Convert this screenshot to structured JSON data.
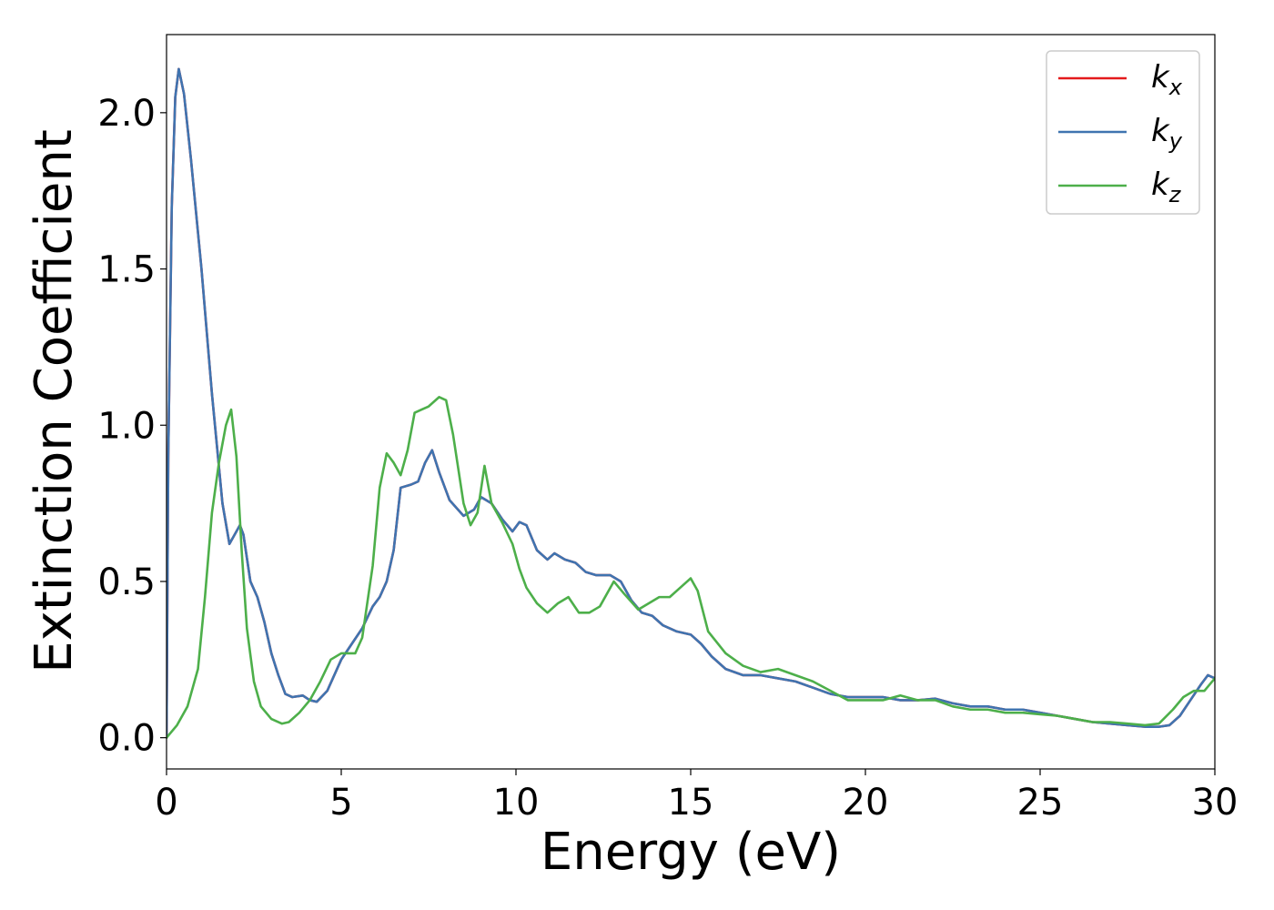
{
  "chart_data": {
    "type": "line",
    "title": "",
    "xlabel": "Energy (eV)",
    "ylabel": "Extinction Coefficient",
    "xlim": [
      0,
      30
    ],
    "ylim": [
      -0.1,
      2.25
    ],
    "xticks": [
      0,
      5,
      10,
      15,
      20,
      25,
      30
    ],
    "xtick_labels": [
      "0",
      "5",
      "10",
      "15",
      "20",
      "25",
      "30"
    ],
    "yticks": [
      0.0,
      0.5,
      1.0,
      1.5,
      2.0
    ],
    "ytick_labels": [
      "0.0",
      "0.5",
      "1.0",
      "1.5",
      "2.0"
    ],
    "grid": false,
    "legend_position": "top-right",
    "series": [
      {
        "name": "k",
        "sub": "x",
        "color": "#e41a1c",
        "x": [
          0,
          0.05,
          0.15,
          0.25,
          0.35,
          0.5,
          0.7,
          1.0,
          1.3,
          1.6,
          1.8,
          2.0,
          2.1,
          2.2,
          2.4,
          2.6,
          2.8,
          3.0,
          3.2,
          3.4,
          3.6,
          3.9,
          4.1,
          4.3,
          4.6,
          5.0,
          5.3,
          5.6,
          5.9,
          6.1,
          6.3,
          6.5,
          6.7,
          7.0,
          7.2,
          7.4,
          7.6,
          7.8,
          8.1,
          8.5,
          8.8,
          9.0,
          9.3,
          9.6,
          9.9,
          10.1,
          10.3,
          10.6,
          10.9,
          11.1,
          11.4,
          11.7,
          12.0,
          12.3,
          12.7,
          13.0,
          13.3,
          13.6,
          13.9,
          14.2,
          14.6,
          15.0,
          15.3,
          15.6,
          16.0,
          16.5,
          17.0,
          17.5,
          18.0,
          18.5,
          19.0,
          19.5,
          20.0,
          20.5,
          21.0,
          21.5,
          22.0,
          22.5,
          23.0,
          23.5,
          24.0,
          24.5,
          25.0,
          25.5,
          26.0,
          26.5,
          27.0,
          27.5,
          28.0,
          28.4,
          28.7,
          29.0,
          29.3,
          29.6,
          29.8,
          30.0
        ],
        "y": [
          0.0,
          0.9,
          1.7,
          2.05,
          2.14,
          2.06,
          1.85,
          1.5,
          1.1,
          0.75,
          0.62,
          0.66,
          0.68,
          0.65,
          0.5,
          0.45,
          0.37,
          0.27,
          0.2,
          0.14,
          0.13,
          0.135,
          0.12,
          0.115,
          0.15,
          0.25,
          0.3,
          0.35,
          0.42,
          0.45,
          0.5,
          0.6,
          0.8,
          0.81,
          0.82,
          0.88,
          0.92,
          0.85,
          0.76,
          0.71,
          0.73,
          0.77,
          0.75,
          0.7,
          0.66,
          0.69,
          0.68,
          0.6,
          0.57,
          0.59,
          0.57,
          0.56,
          0.53,
          0.52,
          0.52,
          0.5,
          0.44,
          0.4,
          0.39,
          0.36,
          0.34,
          0.33,
          0.3,
          0.26,
          0.22,
          0.2,
          0.2,
          0.19,
          0.18,
          0.16,
          0.14,
          0.13,
          0.13,
          0.13,
          0.12,
          0.12,
          0.125,
          0.11,
          0.1,
          0.1,
          0.09,
          0.09,
          0.08,
          0.07,
          0.06,
          0.05,
          0.045,
          0.04,
          0.035,
          0.035,
          0.04,
          0.07,
          0.12,
          0.17,
          0.2,
          0.19
        ]
      },
      {
        "name": "k",
        "sub": "y",
        "color": "#3f74b0",
        "x": [
          0,
          0.05,
          0.15,
          0.25,
          0.35,
          0.5,
          0.7,
          1.0,
          1.3,
          1.6,
          1.8,
          2.0,
          2.1,
          2.2,
          2.4,
          2.6,
          2.8,
          3.0,
          3.2,
          3.4,
          3.6,
          3.9,
          4.1,
          4.3,
          4.6,
          5.0,
          5.3,
          5.6,
          5.9,
          6.1,
          6.3,
          6.5,
          6.7,
          7.0,
          7.2,
          7.4,
          7.6,
          7.8,
          8.1,
          8.5,
          8.8,
          9.0,
          9.3,
          9.6,
          9.9,
          10.1,
          10.3,
          10.6,
          10.9,
          11.1,
          11.4,
          11.7,
          12.0,
          12.3,
          12.7,
          13.0,
          13.3,
          13.6,
          13.9,
          14.2,
          14.6,
          15.0,
          15.3,
          15.6,
          16.0,
          16.5,
          17.0,
          17.5,
          18.0,
          18.5,
          19.0,
          19.5,
          20.0,
          20.5,
          21.0,
          21.5,
          22.0,
          22.5,
          23.0,
          23.5,
          24.0,
          24.5,
          25.0,
          25.5,
          26.0,
          26.5,
          27.0,
          27.5,
          28.0,
          28.4,
          28.7,
          29.0,
          29.3,
          29.6,
          29.8,
          30.0
        ],
        "y": [
          0.0,
          0.9,
          1.7,
          2.05,
          2.14,
          2.06,
          1.85,
          1.5,
          1.1,
          0.75,
          0.62,
          0.66,
          0.68,
          0.65,
          0.5,
          0.45,
          0.37,
          0.27,
          0.2,
          0.14,
          0.13,
          0.135,
          0.12,
          0.115,
          0.15,
          0.25,
          0.3,
          0.35,
          0.42,
          0.45,
          0.5,
          0.6,
          0.8,
          0.81,
          0.82,
          0.88,
          0.92,
          0.85,
          0.76,
          0.71,
          0.73,
          0.77,
          0.75,
          0.7,
          0.66,
          0.69,
          0.68,
          0.6,
          0.57,
          0.59,
          0.57,
          0.56,
          0.53,
          0.52,
          0.52,
          0.5,
          0.44,
          0.4,
          0.39,
          0.36,
          0.34,
          0.33,
          0.3,
          0.26,
          0.22,
          0.2,
          0.2,
          0.19,
          0.18,
          0.16,
          0.14,
          0.13,
          0.13,
          0.13,
          0.12,
          0.12,
          0.125,
          0.11,
          0.1,
          0.1,
          0.09,
          0.09,
          0.08,
          0.07,
          0.06,
          0.05,
          0.045,
          0.04,
          0.035,
          0.035,
          0.04,
          0.07,
          0.12,
          0.17,
          0.2,
          0.19
        ]
      },
      {
        "name": "k",
        "sub": "z",
        "color": "#4daf4a",
        "x": [
          0,
          0.3,
          0.6,
          0.9,
          1.1,
          1.3,
          1.5,
          1.7,
          1.85,
          2.0,
          2.15,
          2.3,
          2.5,
          2.7,
          3.0,
          3.3,
          3.5,
          3.8,
          4.1,
          4.4,
          4.7,
          5.0,
          5.2,
          5.4,
          5.6,
          5.9,
          6.1,
          6.3,
          6.5,
          6.7,
          6.9,
          7.1,
          7.3,
          7.5,
          7.8,
          8.0,
          8.2,
          8.5,
          8.7,
          8.9,
          9.1,
          9.3,
          9.6,
          9.9,
          10.1,
          10.3,
          10.6,
          10.9,
          11.2,
          11.5,
          11.8,
          12.1,
          12.4,
          12.8,
          13.1,
          13.5,
          13.8,
          14.1,
          14.4,
          14.7,
          15.0,
          15.2,
          15.5,
          16.0,
          16.5,
          17.0,
          17.5,
          18.0,
          18.5,
          19.0,
          19.5,
          20.0,
          20.5,
          21.0,
          21.5,
          22.0,
          22.5,
          23.0,
          23.5,
          24.0,
          24.5,
          25.0,
          25.5,
          26.0,
          26.5,
          27.0,
          27.5,
          28.0,
          28.4,
          28.8,
          29.1,
          29.4,
          29.7,
          30.0
        ],
        "y": [
          0.0,
          0.04,
          0.1,
          0.22,
          0.45,
          0.72,
          0.88,
          1.0,
          1.05,
          0.9,
          0.6,
          0.35,
          0.18,
          0.1,
          0.06,
          0.045,
          0.05,
          0.08,
          0.12,
          0.18,
          0.25,
          0.27,
          0.27,
          0.27,
          0.32,
          0.55,
          0.8,
          0.91,
          0.88,
          0.84,
          0.92,
          1.04,
          1.05,
          1.06,
          1.09,
          1.08,
          0.97,
          0.75,
          0.68,
          0.72,
          0.87,
          0.75,
          0.69,
          0.62,
          0.54,
          0.48,
          0.43,
          0.4,
          0.43,
          0.45,
          0.4,
          0.4,
          0.42,
          0.5,
          0.46,
          0.41,
          0.43,
          0.45,
          0.45,
          0.48,
          0.51,
          0.47,
          0.34,
          0.27,
          0.23,
          0.21,
          0.22,
          0.2,
          0.18,
          0.15,
          0.12,
          0.12,
          0.12,
          0.135,
          0.12,
          0.12,
          0.1,
          0.09,
          0.09,
          0.08,
          0.08,
          0.075,
          0.07,
          0.06,
          0.05,
          0.05,
          0.045,
          0.04,
          0.045,
          0.09,
          0.13,
          0.15,
          0.15,
          0.19
        ]
      }
    ]
  }
}
